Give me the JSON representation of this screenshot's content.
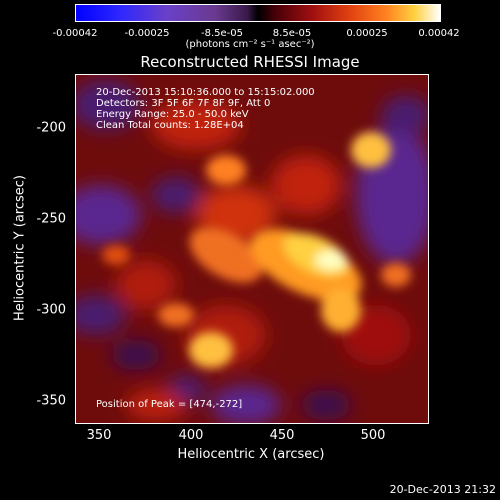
{
  "colorbar": {
    "ticks": [
      "-0.00042",
      "-0.00025",
      "-8.5e-05",
      "8.5e-05",
      "0.00025",
      "0.00042"
    ],
    "units": "(photons cm⁻² s⁻¹ asec⁻²)"
  },
  "title": "Reconstructed RHESSI Image",
  "annotations": {
    "line1": "20-Dec-2013 15:10:36.000 to 15:15:02.000",
    "line2": "Detectors: 3F 5F 6F 7F 8F 9F, Att 0",
    "line3": "Energy Range: 25.0 - 50.0 keV",
    "line4": "Clean     Total counts: 1.28E+04",
    "peak": "Position of Peak = [474,-272]"
  },
  "axes": {
    "xlabel": "Heliocentric X (arcsec)",
    "ylabel": "Heliocentric Y (arcsec)",
    "xticks": [
      "350",
      "400",
      "450",
      "500"
    ],
    "yticks": [
      "-200",
      "-250",
      "-300",
      "-350"
    ]
  },
  "timestamp": "20-Dec-2013 21:32"
}
